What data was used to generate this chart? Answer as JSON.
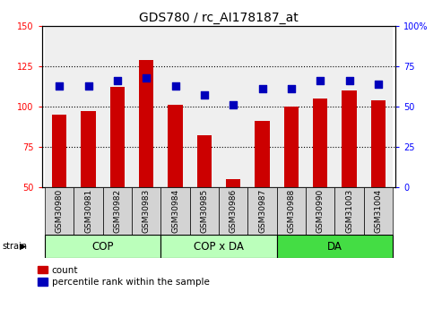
{
  "title": "GDS780 / rc_AI178187_at",
  "samples": [
    "GSM30980",
    "GSM30981",
    "GSM30982",
    "GSM30983",
    "GSM30984",
    "GSM30985",
    "GSM30986",
    "GSM30987",
    "GSM30988",
    "GSM30990",
    "GSM31003",
    "GSM31004"
  ],
  "count_values": [
    95,
    97,
    112,
    129,
    101,
    82,
    55,
    91,
    100,
    105,
    110,
    104
  ],
  "percentile_values": [
    63,
    63,
    66,
    68,
    63,
    57,
    51,
    61,
    61,
    66,
    66,
    64
  ],
  "groups": [
    {
      "label": "COP",
      "start": 0,
      "end": 4
    },
    {
      "label": "COP x DA",
      "start": 4,
      "end": 8
    },
    {
      "label": "DA",
      "start": 8,
      "end": 12
    }
  ],
  "group_colors": {
    "COP": "#bbffbb",
    "COP x DA": "#bbffbb",
    "DA": "#44dd44"
  },
  "ylim_left": [
    50,
    150
  ],
  "ylim_right": [
    0,
    100
  ],
  "yticks_left": [
    50,
    75,
    100,
    125,
    150
  ],
  "yticks_right": [
    0,
    25,
    50,
    75,
    100
  ],
  "ytick_labels_right": [
    "0",
    "25",
    "50",
    "75",
    "100%"
  ],
  "bar_color": "#cc0000",
  "dot_color": "#0000bb",
  "sample_bg_color": "#d3d3d3",
  "bar_width": 0.5,
  "dot_size": 30,
  "group_label_fontsize": 8.5,
  "tick_label_fontsize": 7,
  "sample_label_fontsize": 6.5,
  "title_fontsize": 10,
  "legend_fontsize": 7.5
}
